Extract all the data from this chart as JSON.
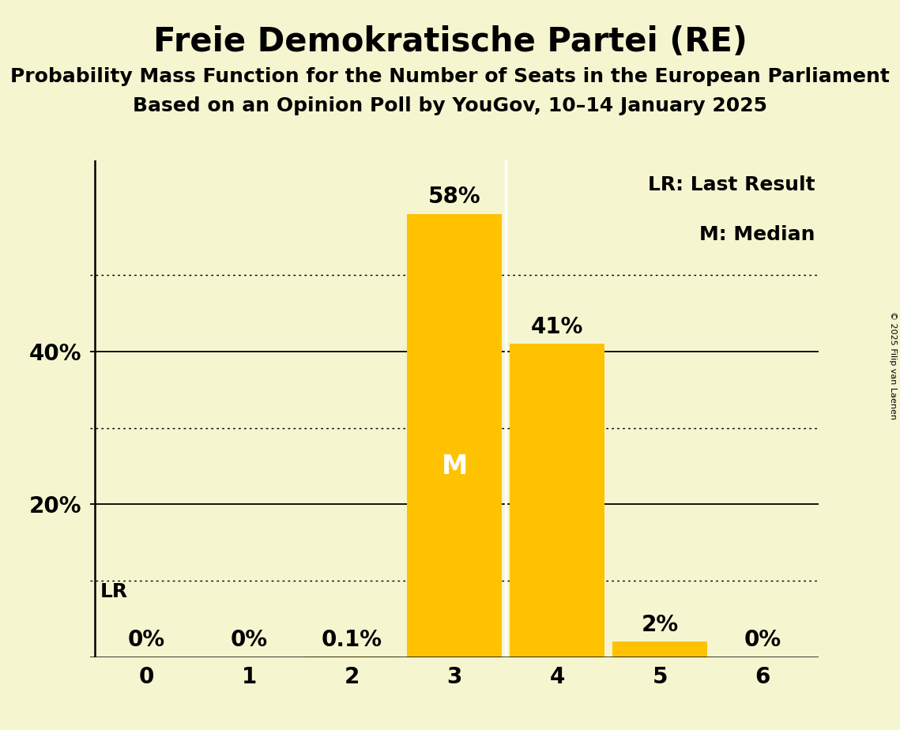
{
  "title": "Freie Demokratische Partei (RE)",
  "subtitle1": "Probability Mass Function for the Number of Seats in the European Parliament",
  "subtitle2": "Based on an Opinion Poll by YouGov, 10–14 January 2025",
  "copyright": "© 2025 Filip van Laenen",
  "categories": [
    0,
    1,
    2,
    3,
    4,
    5,
    6
  ],
  "values": [
    0.0,
    0.0,
    0.001,
    0.58,
    0.41,
    0.02,
    0.0
  ],
  "bar_color": "#FFC200",
  "background_color": "#F5F5D0",
  "solid_yticks": [
    0.2,
    0.4
  ],
  "dotted_yticks": [
    0.1,
    0.3,
    0.5
  ],
  "ylim": [
    0,
    0.65
  ],
  "bar_labels": [
    "0%",
    "0%",
    "0.1%",
    "58%",
    "41%",
    "2%",
    "0%"
  ],
  "median_bar_idx": 3,
  "median_label": "M",
  "lr_label": "LR",
  "legend_lines": [
    "LR: Last Result",
    "M: Median"
  ],
  "title_fontsize": 30,
  "subtitle_fontsize": 18,
  "axis_label_fontsize": 20,
  "bar_label_fontsize": 20,
  "legend_fontsize": 18,
  "median_fontsize": 24,
  "lr_marker_fontsize": 18,
  "white_divider_at": 3.5
}
